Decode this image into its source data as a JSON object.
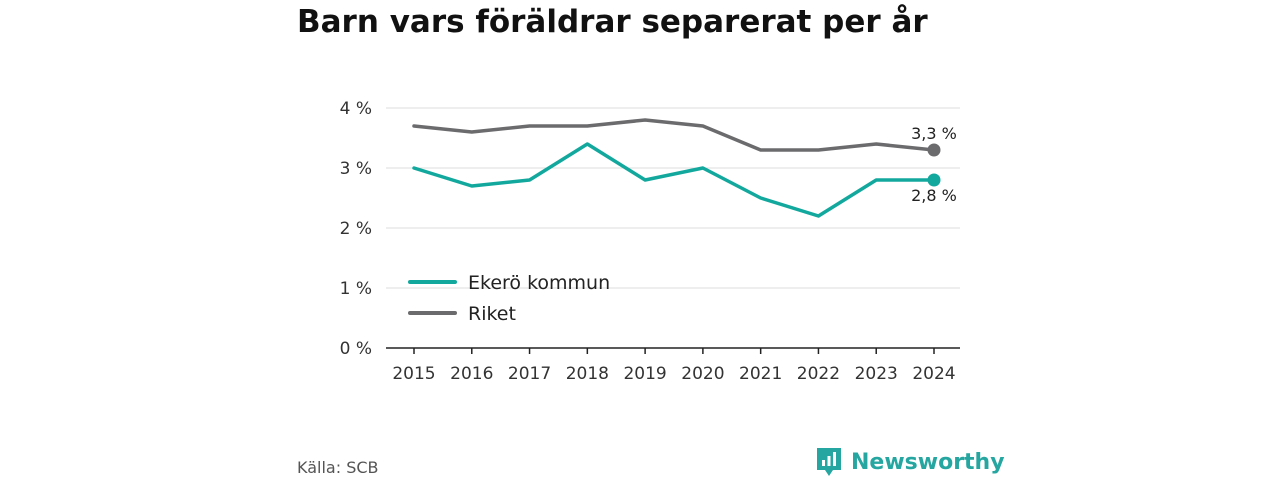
{
  "title": "Barn vars föräldrar separerat per år",
  "source": "Källa: SCB",
  "brand": {
    "name": "Newsworthy",
    "icon": "newsworthy-logo-icon",
    "color": "#26a6a0"
  },
  "chart_data": {
    "type": "line",
    "title": "Barn vars föräldrar separerat per år",
    "x": [
      "2015",
      "2016",
      "2017",
      "2018",
      "2019",
      "2020",
      "2021",
      "2022",
      "2023",
      "2024"
    ],
    "ylim": [
      0,
      4
    ],
    "yticks": [
      0,
      1,
      2,
      3,
      4
    ],
    "ytick_labels": [
      "0 %",
      "1 %",
      "2 %",
      "3 %",
      "4 %"
    ],
    "grid": true,
    "legend_position": "bottom-left",
    "series": [
      {
        "name": "Ekerö kommun",
        "color": "#13a89e",
        "values": [
          3.0,
          2.7,
          2.8,
          3.4,
          2.8,
          3.0,
          2.5,
          2.2,
          2.8,
          2.8
        ],
        "end_label": "2,8 %"
      },
      {
        "name": "Riket",
        "color": "#6b6b6e",
        "values": [
          3.7,
          3.6,
          3.7,
          3.7,
          3.8,
          3.7,
          3.3,
          3.3,
          3.4,
          3.3
        ],
        "end_label": "3,3 %"
      }
    ]
  }
}
